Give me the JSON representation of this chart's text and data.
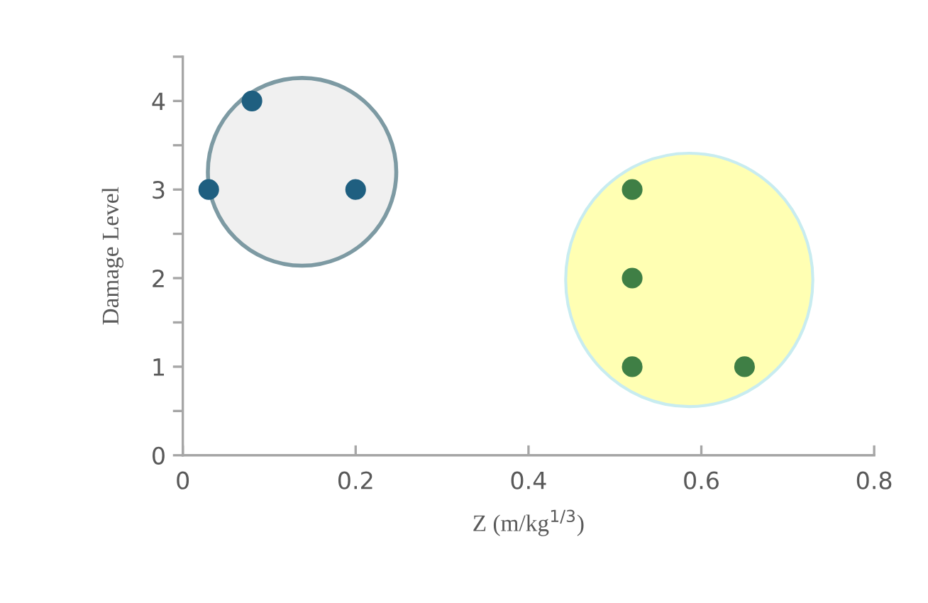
{
  "chart_data": {
    "type": "scatter",
    "xlabel": "Z (m/kg$^{1/3}$)",
    "ylabel": "Damage Level",
    "series": [
      {
        "color": "#1f5f80",
        "x": [
          0.03,
          0.08,
          0.2
        ],
        "values": [
          3,
          4,
          3
        ]
      },
      {
        "color": "#3f7f45",
        "x": [
          0.52,
          0.52,
          0.52,
          0.65
        ],
        "values": [
          3,
          2,
          1,
          1
        ]
      }
    ],
    "xlim": [
      0,
      0.8
    ],
    "ylim": [
      0,
      4.5
    ],
    "xticks": [
      0,
      0.2,
      0.4,
      0.6,
      0.8
    ],
    "yticks": [
      0,
      {
        "value": 0.5,
        "label": null
      },
      1,
      {
        "value": 1.5,
        "label": null
      },
      2,
      {
        "value": 2.5,
        "label": null
      },
      3,
      {
        "value": 3.5,
        "label": null
      },
      4,
      {
        "value": 4.5,
        "label": null
      }
    ],
    "marker": "circle"
  }
}
